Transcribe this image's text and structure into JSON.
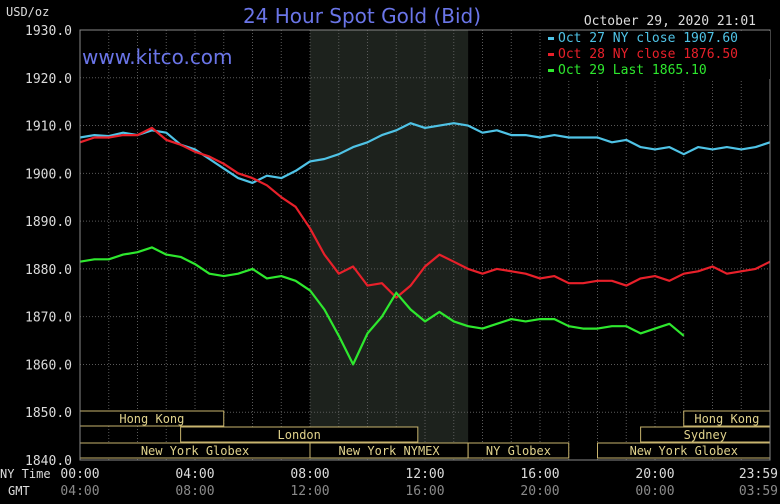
{
  "chart_data": {
    "type": "line",
    "title": "24 Hour Spot Gold (Bid)",
    "ylabel": "USD/oz",
    "timestamp": "October 29, 2020 21:01",
    "watermark": "www.kitco.com",
    "ylim": [
      1840,
      1930
    ],
    "y_ticks": [
      "1930.0",
      "1920.0",
      "1910.0",
      "1900.0",
      "1890.0",
      "1880.0",
      "1870.0",
      "1860.0",
      "1850.0",
      "1840.0"
    ],
    "x_axis_label_ny": "NY Time",
    "x_axis_label_gmt": "GMT",
    "x_ticks_ny": [
      "00:00",
      "04:00",
      "08:00",
      "12:00",
      "16:00",
      "20:00",
      "23:59"
    ],
    "x_ticks_gmt": [
      "04:00",
      "08:00",
      "12:00",
      "16:00",
      "20:00",
      "00:00",
      "03:59"
    ],
    "x_tick_hours": [
      0,
      4,
      8,
      12,
      16,
      20,
      23.983
    ],
    "xlim_hours": [
      0,
      24
    ],
    "grid": true,
    "legend_position": "top-right",
    "highlight_band_hours": [
      8.0,
      13.5
    ],
    "series": [
      {
        "name": "Oct 27 NY close 1907.60",
        "color": "#4fc3e6",
        "x": [
          0,
          0.5,
          1,
          1.5,
          2,
          2.5,
          3,
          3.5,
          4,
          4.5,
          5,
          5.5,
          6,
          6.5,
          7,
          7.5,
          8,
          8.5,
          9,
          9.5,
          10,
          10.5,
          11,
          11.5,
          12,
          12.5,
          13,
          13.5,
          14,
          14.5,
          15,
          15.5,
          16,
          16.5,
          17,
          17.5,
          18,
          18.5,
          19,
          19.5,
          20,
          20.5,
          21,
          21.5,
          22,
          22.5,
          23,
          23.5,
          24
        ],
        "y": [
          1907.5,
          1908.0,
          1907.8,
          1908.5,
          1908.0,
          1909.0,
          1908.5,
          1906.0,
          1905.0,
          1903.0,
          1901.0,
          1899.0,
          1898.0,
          1899.5,
          1899.0,
          1900.5,
          1902.5,
          1903.0,
          1904.0,
          1905.5,
          1906.5,
          1908.0,
          1909.0,
          1910.5,
          1909.5,
          1910.0,
          1910.5,
          1910.0,
          1908.5,
          1909.0,
          1908.0,
          1908.0,
          1907.5,
          1908.0,
          1907.5,
          1907.5,
          1907.5,
          1906.5,
          1907.0,
          1905.5,
          1905.0,
          1905.5,
          1904.0,
          1905.5,
          1905.0,
          1905.5,
          1905.0,
          1905.5,
          1906.5
        ]
      },
      {
        "name": "Oct 28 NY close 1876.50",
        "color": "#e8202a",
        "x": [
          0,
          0.5,
          1,
          1.5,
          2,
          2.5,
          3,
          3.5,
          4,
          4.5,
          5,
          5.5,
          6,
          6.5,
          7,
          7.5,
          8,
          8.5,
          9,
          9.5,
          10,
          10.5,
          11,
          11.5,
          12,
          12.5,
          13,
          13.5,
          14,
          14.5,
          15,
          15.5,
          16,
          16.5,
          17,
          17.5,
          18,
          18.5,
          19,
          19.5,
          20,
          20.5,
          21,
          21.5,
          22,
          22.5,
          23,
          23.5,
          24
        ],
        "y": [
          1906.5,
          1907.5,
          1907.5,
          1908.0,
          1908.0,
          1909.5,
          1907.0,
          1906.0,
          1904.5,
          1903.5,
          1902.0,
          1900.0,
          1899.0,
          1897.5,
          1895.0,
          1893.0,
          1888.5,
          1883.0,
          1879.0,
          1880.5,
          1876.5,
          1877.0,
          1874.0,
          1876.5,
          1880.5,
          1883.0,
          1881.5,
          1880.0,
          1879.0,
          1880.0,
          1879.5,
          1879.0,
          1878.0,
          1878.5,
          1877.0,
          1877.0,
          1877.5,
          1877.5,
          1876.5,
          1878.0,
          1878.5,
          1877.5,
          1879.0,
          1879.5,
          1880.5,
          1879.0,
          1879.5,
          1880.0,
          1881.5
        ]
      },
      {
        "name": "Oct 29 Last 1865.10",
        "color": "#2ee82e",
        "x": [
          0,
          0.5,
          1,
          1.5,
          2,
          2.5,
          3,
          3.5,
          4,
          4.5,
          5,
          5.5,
          6,
          6.5,
          7,
          7.5,
          8,
          8.5,
          9,
          9.5,
          10,
          10.5,
          11,
          11.5,
          12,
          12.5,
          13,
          13.5,
          14,
          14.5,
          15,
          15.5,
          16,
          16.5,
          17,
          17.5,
          18,
          18.5,
          19,
          19.5,
          20,
          20.5,
          21
        ],
        "y": [
          1881.5,
          1882.0,
          1882.0,
          1883.0,
          1883.5,
          1884.5,
          1883.0,
          1882.5,
          1881.0,
          1879.0,
          1878.5,
          1879.0,
          1880.0,
          1878.0,
          1878.5,
          1877.5,
          1875.5,
          1871.5,
          1866.0,
          1860.0,
          1866.5,
          1870.0,
          1875.0,
          1871.5,
          1869.0,
          1871.0,
          1869.0,
          1868.0,
          1867.5,
          1868.5,
          1869.5,
          1869.0,
          1869.5,
          1869.5,
          1868.0,
          1867.5,
          1867.5,
          1868.0,
          1868.0,
          1866.5,
          1867.5,
          1868.5,
          1866.0
        ]
      }
    ],
    "sessions": [
      {
        "label": "Hong Kong",
        "row": 0,
        "start": 0,
        "end": 5.0
      },
      {
        "label": "Hong Kong",
        "row": 0,
        "start": 21.0,
        "end": 24.0
      },
      {
        "label": "London",
        "row": 1,
        "start": 3.5,
        "end": 11.75
      },
      {
        "label": "Sydney",
        "row": 1,
        "start": 19.5,
        "end": 24.0
      },
      {
        "label": "New York Globex",
        "row": 2,
        "start": 0,
        "end": 8.0
      },
      {
        "label": "New York NYMEX",
        "row": 2,
        "start": 8.0,
        "end": 13.5
      },
      {
        "label": "NY Globex",
        "row": 2,
        "start": 13.5,
        "end": 17.0
      },
      {
        "label": "New York Globex",
        "row": 2,
        "start": 18.0,
        "end": 24.0
      }
    ]
  }
}
